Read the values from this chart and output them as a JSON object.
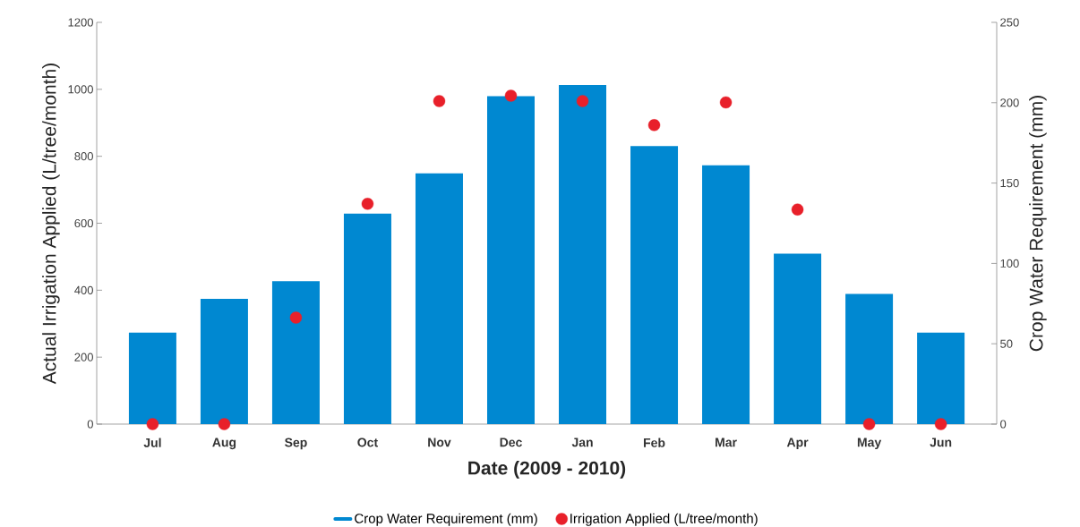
{
  "chart_data": {
    "type": "bar",
    "xlabel": "Date (2009 - 2010)",
    "ylabel": "Actual Irrigation Applied (L/tree/month)",
    "y2label": "Crop Water Requirement (mm)",
    "categories": [
      "Jul",
      "Aug",
      "Sep",
      "Oct",
      "Nov",
      "Dec",
      "Jan",
      "Feb",
      "Mar",
      "Apr",
      "May",
      "Jun"
    ],
    "series": [
      {
        "name": "Crop Water Requirement (mm)",
        "axis": "y2",
        "color": "#0088d1",
        "values": [
          57,
          78,
          89,
          131,
          156,
          204,
          211,
          173,
          161,
          106,
          81,
          57
        ]
      },
      {
        "name": "Irrigation Applied (L/tree/month)",
        "type": "scatter",
        "color": "#e8202a",
        "values": [
          0,
          0,
          318,
          658,
          965,
          981,
          965,
          893,
          961,
          641,
          0,
          0
        ]
      }
    ],
    "ylim": [
      0,
      1200
    ],
    "yticks": [
      0,
      200,
      400,
      600,
      800,
      1000,
      1200
    ],
    "y2lim": [
      0,
      250
    ],
    "y2ticks": [
      0,
      50,
      100,
      150,
      200,
      250
    ],
    "legend": "bottom",
    "grid": false,
    "marker": "circle"
  }
}
